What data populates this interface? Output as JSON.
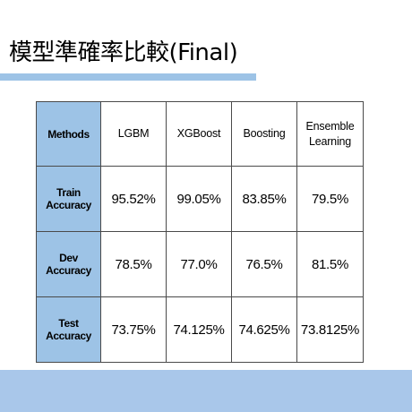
{
  "slide": {
    "title": "模型準確率比較(Final)"
  },
  "table": {
    "corner_header": "Methods",
    "columns": [
      "LGBM",
      "XGBoost",
      "Boosting",
      "Ensemble Learning"
    ],
    "rows": [
      {
        "label": "Train Accuracy",
        "values": [
          "95.52%",
          "99.05%",
          "83.85%",
          "79.5%"
        ]
      },
      {
        "label": "Dev Accuracy",
        "values": [
          "78.5%",
          "77.0%",
          "76.5%",
          "81.5%"
        ]
      },
      {
        "label": "Test Accuracy",
        "values": [
          "73.75%",
          "74.125%",
          "74.625%",
          "73.8125%"
        ]
      }
    ]
  },
  "colors": {
    "accent": "#9dc3e6",
    "bottom_band": "#a9c7ea",
    "border": "#4a4a4a"
  }
}
